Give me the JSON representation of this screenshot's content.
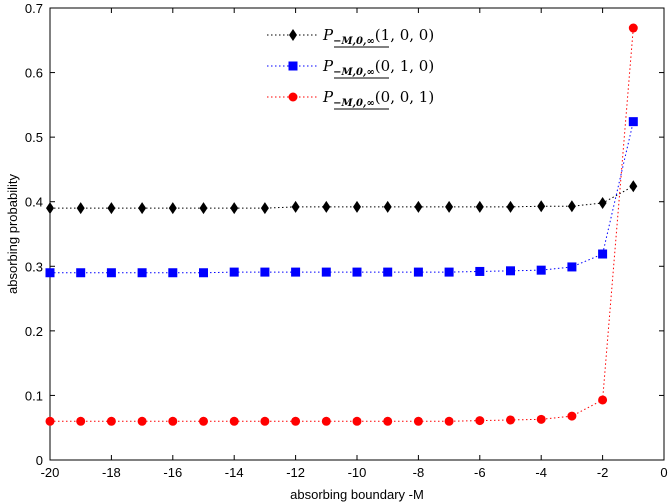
{
  "chart_data": {
    "type": "line",
    "title": "",
    "xlabel": "absorbing boundary -M",
    "ylabel": "absorbing probability",
    "xlim": [
      -20,
      0
    ],
    "ylim": [
      0,
      0.7
    ],
    "xticks": [
      -20,
      -18,
      -16,
      -14,
      -12,
      -10,
      -8,
      -6,
      -4,
      -2,
      0
    ],
    "yticks": [
      0,
      0.1,
      0.2,
      0.3,
      0.4,
      0.5,
      0.6,
      0.7
    ],
    "grid": false,
    "legend_position": "top-center",
    "x": [
      -20,
      -19,
      -18,
      -17,
      -16,
      -15,
      -14,
      -13,
      -12,
      -11,
      -10,
      -9,
      -8,
      -7,
      -6,
      -5,
      -4,
      -3,
      -2,
      -1
    ],
    "series": [
      {
        "name": "P_{-M,0,∞}(1,0,0)",
        "legend_main": "P",
        "legend_sub": "−M,0,∞",
        "legend_args": "(1, 0, 0)",
        "color": "#000000",
        "marker": "diamond",
        "linestyle": "dotted",
        "values": [
          0.39,
          0.39,
          0.39,
          0.39,
          0.39,
          0.39,
          0.39,
          0.39,
          0.392,
          0.392,
          0.392,
          0.392,
          0.392,
          0.392,
          0.392,
          0.392,
          0.393,
          0.393,
          0.398,
          0.424
        ]
      },
      {
        "name": "P_{-M,0,∞}(0,1,0)",
        "legend_main": "P",
        "legend_sub": "−M,0,∞",
        "legend_args": "(0, 1, 0)",
        "color": "#0000ff",
        "marker": "square",
        "linestyle": "dotted",
        "values": [
          0.29,
          0.29,
          0.29,
          0.29,
          0.29,
          0.29,
          0.291,
          0.291,
          0.291,
          0.291,
          0.291,
          0.291,
          0.291,
          0.291,
          0.292,
          0.293,
          0.294,
          0.299,
          0.319,
          0.524
        ]
      },
      {
        "name": "P_{-M,0,∞}(0,0,1)",
        "legend_main": "P",
        "legend_sub": "−M,0,∞",
        "legend_args": "(0, 0, 1)",
        "color": "#ff0000",
        "marker": "circle",
        "linestyle": "dotted",
        "values": [
          0.06,
          0.06,
          0.06,
          0.06,
          0.06,
          0.06,
          0.06,
          0.06,
          0.06,
          0.06,
          0.06,
          0.06,
          0.06,
          0.06,
          0.061,
          0.062,
          0.063,
          0.068,
          0.093,
          0.669
        ]
      }
    ]
  }
}
